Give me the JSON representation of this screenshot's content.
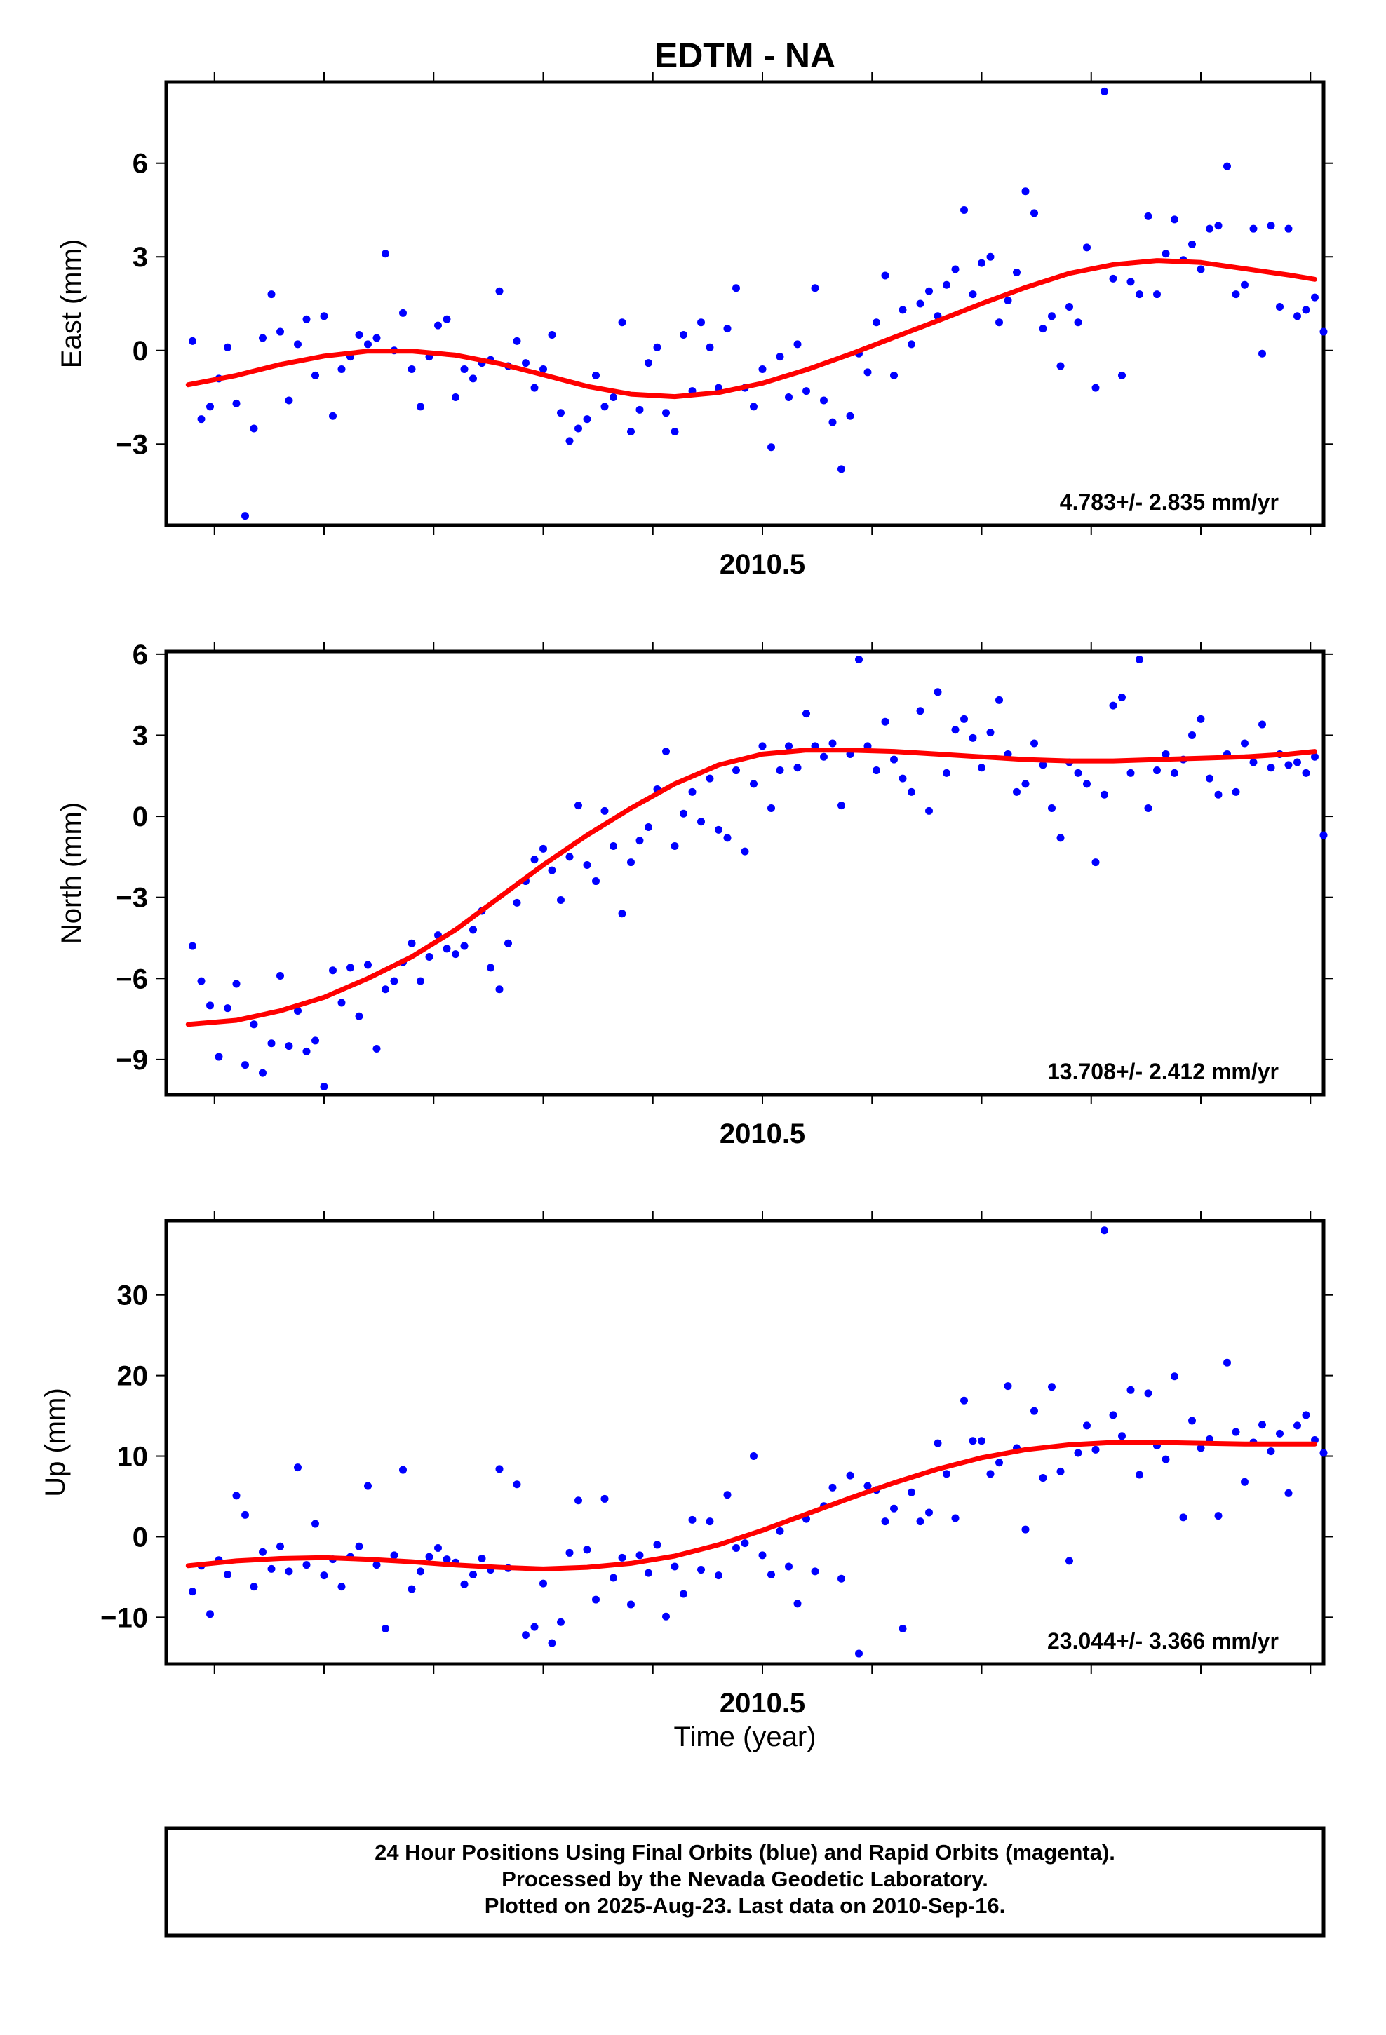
{
  "title": "EDTM - NA",
  "xlabel": "Time (year)",
  "footer": {
    "line1": "24 Hour Positions Using Final Orbits (blue) and Rapid Orbits (magenta).",
    "line2": "Processed by the Nevada Geodetic Laboratory.",
    "line3": "Plotted on 2025-Aug-23. Last data on 2010-Sep-16."
  },
  "colors": {
    "points": "#0000ff",
    "fit": "#ff0000",
    "frame": "#000000"
  },
  "chart_data": [
    {
      "type": "scatter",
      "ylabel": "East (mm)",
      "x_tick_label": "2010.5",
      "x_tick_value": 2010.5,
      "xlim": [
        2009.82,
        2011.14
      ],
      "ylim": [
        -5.6,
        8.6
      ],
      "yticks": [
        -3,
        0,
        3,
        6
      ],
      "ytick_labels": [
        "−3",
        "0",
        "3",
        "6"
      ],
      "rate": "4.783+/- 2.835 mm/yr",
      "fit": {
        "name": "",
        "x": [
          2009.845,
          2009.9,
          2009.95,
          2010.0,
          2010.05,
          2010.1,
          2010.15,
          2010.2,
          2010.25,
          2010.3,
          2010.35,
          2010.4,
          2010.45,
          2010.5,
          2010.55,
          2010.6,
          2010.65,
          2010.7,
          2010.75,
          2010.8,
          2010.85,
          2010.9,
          2010.95,
          2011.0,
          2011.05,
          2011.1,
          2011.13
        ],
        "y": [
          -1.1,
          -0.8,
          -0.45,
          -0.18,
          -0.02,
          -0.02,
          -0.15,
          -0.42,
          -0.78,
          -1.15,
          -1.4,
          -1.48,
          -1.35,
          -1.05,
          -0.62,
          -0.12,
          0.42,
          0.95,
          1.5,
          2.02,
          2.47,
          2.75,
          2.88,
          2.82,
          2.62,
          2.42,
          2.28
        ]
      },
      "points": {
        "name": "",
        "x": [
          2009.85,
          2009.86,
          2009.87,
          2009.88,
          2009.89,
          2009.9,
          2009.91,
          2009.92,
          2009.93,
          2009.94,
          2009.95,
          2009.96,
          2009.97,
          2009.98,
          2009.99,
          2010.0,
          2010.01,
          2010.02,
          2010.03,
          2010.04,
          2010.05,
          2010.06,
          2010.07,
          2010.08,
          2010.09,
          2010.1,
          2010.11,
          2010.12,
          2010.13,
          2010.14,
          2010.15,
          2010.16,
          2010.17,
          2010.18,
          2010.19,
          2010.2,
          2010.21,
          2010.22,
          2010.23,
          2010.24,
          2010.25,
          2010.26,
          2010.27,
          2010.28,
          2010.29,
          2010.3,
          2010.31,
          2010.32,
          2010.33,
          2010.34,
          2010.35,
          2010.36,
          2010.37,
          2010.38,
          2010.39,
          2010.4,
          2010.41,
          2010.42,
          2010.43,
          2010.44,
          2010.45,
          2010.46,
          2010.47,
          2010.48,
          2010.49,
          2010.5,
          2010.51,
          2010.52,
          2010.53,
          2010.54,
          2010.55,
          2010.56,
          2010.57,
          2010.58,
          2010.59,
          2010.6,
          2010.61,
          2010.62,
          2010.63,
          2010.64,
          2010.65,
          2010.66,
          2010.67,
          2010.68,
          2010.69,
          2010.7,
          2010.71,
          2010.72,
          2010.73,
          2010.74,
          2010.75,
          2010.76,
          2010.77,
          2010.78,
          2010.79,
          2010.8,
          2010.81,
          2010.82,
          2010.83,
          2010.84,
          2010.85,
          2010.86,
          2010.87,
          2010.88,
          2010.89,
          2010.9,
          2010.91,
          2010.92,
          2010.93,
          2010.94,
          2010.95,
          2010.96,
          2010.97,
          2010.98,
          2010.99,
          2011.0,
          2011.01,
          2011.02,
          2011.03,
          2011.04,
          2011.05,
          2011.06,
          2011.07,
          2011.08,
          2011.09,
          2011.1,
          2011.11,
          2011.12,
          2011.13,
          2011.14
        ],
        "y": [
          0.3,
          -2.2,
          -1.8,
          -0.9,
          0.1,
          -1.7,
          -5.3,
          -2.5,
          0.4,
          1.8,
          0.6,
          -1.6,
          0.2,
          1.0,
          -0.8,
          1.1,
          -2.1,
          -0.6,
          -0.2,
          0.5,
          0.2,
          0.4,
          3.1,
          0.0,
          1.2,
          -0.6,
          -1.8,
          -0.2,
          0.8,
          1.0,
          -1.5,
          -0.6,
          -0.9,
          -0.4,
          -0.3,
          1.9,
          -0.5,
          0.3,
          -0.4,
          -1.2,
          -0.6,
          0.5,
          -2.0,
          -2.9,
          -2.5,
          -2.2,
          -0.8,
          -1.8,
          -1.5,
          0.9,
          -2.6,
          -1.9,
          -0.4,
          0.1,
          -2.0,
          -2.6,
          0.5,
          -1.3,
          0.9,
          0.1,
          -1.2,
          0.7,
          2.0,
          -1.2,
          -1.8,
          -0.6,
          -3.1,
          -0.2,
          -1.5,
          0.2,
          -1.3,
          2.0,
          -1.6,
          -2.3,
          -3.8,
          -2.1,
          -0.1,
          -0.7,
          0.9,
          2.4,
          -0.8,
          1.3,
          0.2,
          1.5,
          1.9,
          1.1,
          2.1,
          2.6,
          4.5,
          1.8,
          2.8,
          3.0,
          0.9,
          1.6,
          2.5,
          5.1,
          4.4,
          0.7,
          1.1,
          -0.5,
          1.4,
          0.9,
          3.3,
          -1.2,
          8.3,
          2.3,
          -0.8,
          2.2,
          1.8,
          4.3,
          1.8,
          3.1,
          4.2,
          2.9,
          3.4,
          2.6,
          3.9,
          4.0,
          5.9,
          1.8,
          2.1,
          3.9,
          -0.1,
          4.0,
          1.4,
          3.9,
          1.1,
          1.3,
          1.7,
          0.6
        ]
      }
    },
    {
      "type": "scatter",
      "ylabel": "North (mm)",
      "x_tick_label": "2010.5",
      "x_tick_value": 2010.5,
      "xlim": [
        2009.82,
        2011.14
      ],
      "ylim": [
        -10.3,
        6.1
      ],
      "yticks": [
        -9,
        -6,
        -3,
        0,
        3,
        6
      ],
      "ytick_labels": [
        "−9",
        "−6",
        "−3",
        "0",
        "3",
        "6"
      ],
      "rate": "13.708+/- 2.412 mm/yr",
      "fit": {
        "name": "",
        "x": [
          2009.845,
          2009.9,
          2009.95,
          2010.0,
          2010.05,
          2010.1,
          2010.15,
          2010.2,
          2010.25,
          2010.3,
          2010.35,
          2010.4,
          2010.45,
          2010.5,
          2010.55,
          2010.6,
          2010.65,
          2010.7,
          2010.75,
          2010.8,
          2010.85,
          2010.9,
          2010.95,
          2011.0,
          2011.05,
          2011.1,
          2011.13
        ],
        "y": [
          -7.7,
          -7.55,
          -7.2,
          -6.7,
          -6.0,
          -5.2,
          -4.2,
          -3.0,
          -1.8,
          -0.7,
          0.3,
          1.2,
          1.9,
          2.3,
          2.45,
          2.45,
          2.4,
          2.3,
          2.2,
          2.1,
          2.05,
          2.05,
          2.1,
          2.15,
          2.2,
          2.3,
          2.4
        ]
      },
      "points": {
        "name": "",
        "x": [
          2009.85,
          2009.86,
          2009.87,
          2009.88,
          2009.89,
          2009.9,
          2009.91,
          2009.92,
          2009.93,
          2009.94,
          2009.95,
          2009.96,
          2009.97,
          2009.98,
          2009.99,
          2010.0,
          2010.01,
          2010.02,
          2010.03,
          2010.04,
          2010.05,
          2010.06,
          2010.07,
          2010.08,
          2010.09,
          2010.1,
          2010.11,
          2010.12,
          2010.13,
          2010.14,
          2010.15,
          2010.16,
          2010.17,
          2010.18,
          2010.19,
          2010.2,
          2010.21,
          2010.22,
          2010.23,
          2010.24,
          2010.25,
          2010.26,
          2010.27,
          2010.28,
          2010.29,
          2010.3,
          2010.31,
          2010.32,
          2010.33,
          2010.34,
          2010.35,
          2010.36,
          2010.37,
          2010.38,
          2010.39,
          2010.4,
          2010.41,
          2010.42,
          2010.43,
          2010.44,
          2010.45,
          2010.46,
          2010.47,
          2010.48,
          2010.49,
          2010.5,
          2010.51,
          2010.52,
          2010.53,
          2010.54,
          2010.55,
          2010.56,
          2010.57,
          2010.58,
          2010.59,
          2010.6,
          2010.61,
          2010.62,
          2010.63,
          2010.64,
          2010.65,
          2010.66,
          2010.67,
          2010.68,
          2010.69,
          2010.7,
          2010.71,
          2010.72,
          2010.73,
          2010.74,
          2010.75,
          2010.76,
          2010.77,
          2010.78,
          2010.79,
          2010.8,
          2010.81,
          2010.82,
          2010.83,
          2010.84,
          2010.85,
          2010.86,
          2010.87,
          2010.88,
          2010.89,
          2010.9,
          2010.91,
          2010.92,
          2010.93,
          2010.94,
          2010.95,
          2010.96,
          2010.97,
          2010.98,
          2010.99,
          2011.0,
          2011.01,
          2011.02,
          2011.03,
          2011.04,
          2011.05,
          2011.06,
          2011.07,
          2011.08,
          2011.09,
          2011.1,
          2011.11,
          2011.12,
          2011.13,
          2011.14
        ],
        "y": [
          -4.8,
          -6.1,
          -7.0,
          -8.9,
          -7.1,
          -6.2,
          -9.2,
          -7.7,
          -9.5,
          -8.4,
          -5.9,
          -8.5,
          -7.2,
          -8.7,
          -8.3,
          -10.0,
          -5.7,
          -6.9,
          -5.6,
          -7.4,
          -5.5,
          -8.6,
          -6.4,
          -6.1,
          -5.4,
          -4.7,
          -6.1,
          -5.2,
          -4.4,
          -4.9,
          -5.1,
          -4.8,
          -4.2,
          -3.5,
          -5.6,
          -6.4,
          -4.7,
          -3.2,
          -2.4,
          -1.6,
          -1.2,
          -2.0,
          -3.1,
          -1.5,
          0.4,
          -1.8,
          -2.4,
          0.2,
          -1.1,
          -3.6,
          -1.7,
          -0.9,
          -0.4,
          1.0,
          2.4,
          -1.1,
          0.1,
          0.9,
          -0.2,
          1.4,
          -0.5,
          -0.8,
          1.7,
          -1.3,
          1.2,
          2.6,
          0.3,
          1.7,
          2.6,
          1.8,
          3.8,
          2.6,
          2.2,
          2.7,
          0.4,
          2.3,
          5.8,
          2.6,
          1.7,
          3.5,
          2.1,
          1.4,
          0.9,
          3.9,
          0.2,
          4.6,
          1.6,
          3.2,
          3.6,
          2.9,
          1.8,
          3.1,
          4.3,
          2.3,
          0.9,
          1.2,
          2.7,
          1.9,
          0.3,
          -0.8,
          2.0,
          1.6,
          1.2,
          -1.7,
          0.8,
          4.1,
          4.4,
          1.6,
          5.8,
          0.3,
          1.7,
          2.3,
          1.6,
          2.1,
          3.0,
          3.6,
          1.4,
          0.8,
          2.3,
          0.9,
          2.7,
          2.0,
          3.4,
          1.8,
          2.3,
          1.9,
          2.0,
          1.6,
          2.2,
          -0.7
        ]
      }
    },
    {
      "type": "scatter",
      "ylabel": "Up (mm)",
      "x_tick_label": "2010.5",
      "x_tick_value": 2010.5,
      "xlim": [
        2009.82,
        2011.14
      ],
      "ylim": [
        -15.8,
        39.2
      ],
      "yticks": [
        -10,
        0,
        10,
        20,
        30
      ],
      "ytick_labels": [
        "−10",
        "0",
        "10",
        "20",
        "30"
      ],
      "rate": "23.044+/- 3.366 mm/yr",
      "fit": {
        "name": "",
        "x": [
          2009.845,
          2009.9,
          2009.95,
          2010.0,
          2010.05,
          2010.1,
          2010.15,
          2010.2,
          2010.25,
          2010.3,
          2010.35,
          2010.4,
          2010.45,
          2010.5,
          2010.55,
          2010.6,
          2010.65,
          2010.7,
          2010.75,
          2010.8,
          2010.85,
          2010.9,
          2010.95,
          2011.0,
          2011.05,
          2011.1,
          2011.13
        ],
        "y": [
          -3.6,
          -3.0,
          -2.7,
          -2.6,
          -2.8,
          -3.1,
          -3.5,
          -3.8,
          -4.0,
          -3.8,
          -3.3,
          -2.4,
          -1.0,
          0.8,
          2.8,
          4.8,
          6.7,
          8.4,
          9.8,
          10.8,
          11.4,
          11.7,
          11.7,
          11.6,
          11.5,
          11.5,
          11.5
        ]
      },
      "points": {
        "name": "",
        "x": [
          2009.85,
          2009.86,
          2009.87,
          2009.88,
          2009.89,
          2009.9,
          2009.91,
          2009.92,
          2009.93,
          2009.94,
          2009.95,
          2009.96,
          2009.97,
          2009.98,
          2009.99,
          2010.0,
          2010.01,
          2010.02,
          2010.03,
          2010.04,
          2010.05,
          2010.06,
          2010.07,
          2010.08,
          2010.09,
          2010.1,
          2010.11,
          2010.12,
          2010.13,
          2010.14,
          2010.15,
          2010.16,
          2010.17,
          2010.18,
          2010.19,
          2010.2,
          2010.21,
          2010.22,
          2010.23,
          2010.24,
          2010.25,
          2010.26,
          2010.27,
          2010.28,
          2010.29,
          2010.3,
          2010.31,
          2010.32,
          2010.33,
          2010.34,
          2010.35,
          2010.36,
          2010.37,
          2010.38,
          2010.39,
          2010.4,
          2010.41,
          2010.42,
          2010.43,
          2010.44,
          2010.45,
          2010.46,
          2010.47,
          2010.48,
          2010.49,
          2010.5,
          2010.51,
          2010.52,
          2010.53,
          2010.54,
          2010.55,
          2010.56,
          2010.57,
          2010.58,
          2010.59,
          2010.6,
          2010.61,
          2010.62,
          2010.63,
          2010.64,
          2010.65,
          2010.66,
          2010.67,
          2010.68,
          2010.69,
          2010.7,
          2010.71,
          2010.72,
          2010.73,
          2010.74,
          2010.75,
          2010.76,
          2010.77,
          2010.78,
          2010.79,
          2010.8,
          2010.81,
          2010.82,
          2010.83,
          2010.84,
          2010.85,
          2010.86,
          2010.87,
          2010.88,
          2010.89,
          2010.9,
          2010.91,
          2010.92,
          2010.93,
          2010.94,
          2010.95,
          2010.96,
          2010.97,
          2010.98,
          2010.99,
          2011.0,
          2011.01,
          2011.02,
          2011.03,
          2011.04,
          2011.05,
          2011.06,
          2011.07,
          2011.08,
          2011.09,
          2011.1,
          2011.11,
          2011.12,
          2011.13,
          2011.14
        ],
        "y": [
          -6.8,
          -3.6,
          -9.6,
          -2.9,
          -4.7,
          5.1,
          2.7,
          -6.2,
          -1.9,
          -4.0,
          -1.2,
          -4.3,
          8.6,
          -3.5,
          1.6,
          -4.8,
          -2.8,
          -6.2,
          -2.5,
          -1.2,
          6.3,
          -3.5,
          -11.4,
          -2.3,
          8.3,
          -6.5,
          -4.3,
          -2.5,
          -1.4,
          -2.8,
          -3.2,
          -5.9,
          -4.7,
          -2.7,
          -4.1,
          8.4,
          -3.9,
          6.5,
          -12.2,
          -11.2,
          -5.8,
          -13.2,
          -10.6,
          -2.0,
          4.5,
          -1.6,
          -7.8,
          4.7,
          -5.1,
          -2.6,
          -8.4,
          -2.3,
          -4.5,
          -1.0,
          -9.9,
          -3.7,
          -7.1,
          2.1,
          -4.1,
          1.9,
          -4.8,
          5.2,
          -1.4,
          -0.8,
          10.0,
          -2.3,
          -4.7,
          0.7,
          -3.7,
          -8.3,
          2.2,
          -4.3,
          3.8,
          6.1,
          -5.2,
          7.6,
          -14.5,
          6.3,
          5.8,
          1.9,
          3.5,
          -11.4,
          5.5,
          1.9,
          3.0,
          11.6,
          7.8,
          2.3,
          16.9,
          11.9,
          11.9,
          7.8,
          9.2,
          18.7,
          11.0,
          0.9,
          15.6,
          7.3,
          18.6,
          8.1,
          -3.0,
          10.4,
          13.8,
          10.8,
          38.0,
          15.1,
          12.5,
          18.2,
          7.7,
          17.8,
          11.3,
          9.6,
          19.9,
          2.4,
          14.4,
          11.0,
          12.1,
          2.6,
          21.6,
          13.0,
          6.8,
          11.7,
          13.9,
          10.6,
          12.8,
          5.4,
          13.8,
          15.1,
          12.0,
          10.4
        ]
      }
    }
  ]
}
